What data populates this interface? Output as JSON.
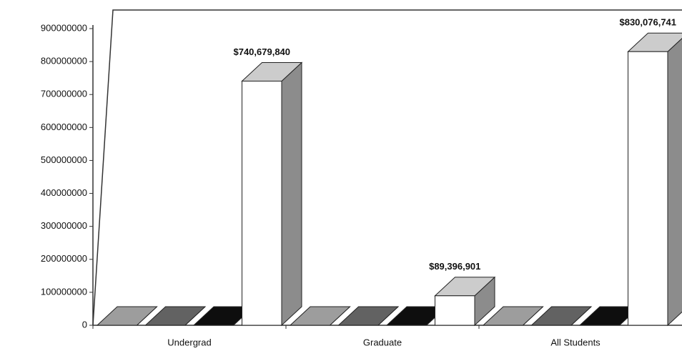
{
  "chart_data": {
    "type": "bar3d",
    "categories": [
      "Undergrad",
      "Graduate",
      "All Students"
    ],
    "series": [
      {
        "color": "#c4c4c4",
        "values": [
          0,
          0,
          0
        ]
      },
      {
        "color": "#7a7a7a",
        "values": [
          0,
          0,
          0
        ]
      },
      {
        "color": "#111111",
        "values": [
          0,
          0,
          0
        ]
      },
      {
        "color": "#ffffff",
        "values": [
          740679840,
          89396901,
          830076741
        ],
        "value_labels": [
          "$740,679,840",
          "$89,396,901",
          "$830,076,741"
        ]
      }
    ],
    "ylim": [
      0,
      900000000
    ],
    "yticks": [
      0,
      100000000,
      200000000,
      300000000,
      400000000,
      500000000,
      600000000,
      700000000,
      800000000,
      900000000
    ],
    "grid": false
  }
}
